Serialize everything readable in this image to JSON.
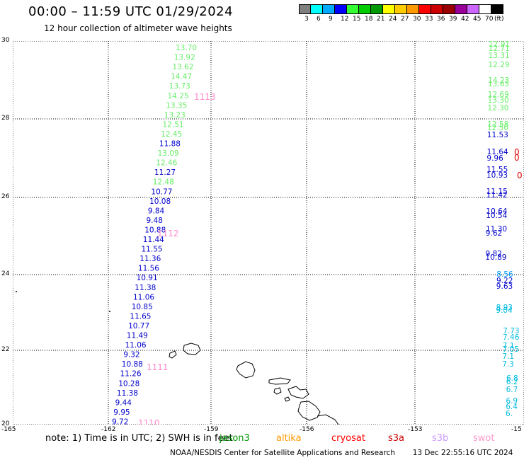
{
  "header": {
    "title": "00:00 – 11:59 UTC 01/29/2024",
    "subtitle": "12 hour collection of altimeter wave heights"
  },
  "colorbar": {
    "colors": [
      "#808080",
      "#00ffff",
      "#00aaff",
      "#0000ff",
      "#33ff33",
      "#00cc00",
      "#009900",
      "#ffff00",
      "#ffcc00",
      "#ff9900",
      "#ff0000",
      "#cc0000",
      "#990000",
      "#990099",
      "#cc66ff",
      "#ffffff",
      "#000000"
    ],
    "labels": [
      "3",
      "6",
      "9",
      "12",
      "15",
      "18",
      "21",
      "24",
      "27",
      "30",
      "33",
      "36",
      "39",
      "42",
      "45",
      "70",
      "(ft)"
    ]
  },
  "axes": {
    "y_labels": [
      "30",
      "28",
      "26",
      "24",
      "22",
      "20"
    ],
    "x_labels": [
      "-165",
      "-162",
      "-159",
      "-156",
      "-153",
      "-15"
    ]
  },
  "tracks": {
    "track_1110": {
      "id": "1110",
      "values": [
        {
          "v": "13.70",
          "c": "#66ee66"
        },
        {
          "v": "13.92",
          "c": "#66ee66"
        },
        {
          "v": "13.62",
          "c": "#66ee66"
        },
        {
          "v": "14.47",
          "c": "#66ee66"
        },
        {
          "v": "13.73",
          "c": "#66ee66"
        },
        {
          "v": "14.25",
          "c": "#66ee66"
        },
        {
          "v": "13.35",
          "c": "#66ee66"
        },
        {
          "v": "13.23",
          "c": "#66ee66"
        },
        {
          "v": "12.51",
          "c": "#66ee66"
        },
        {
          "v": "12.45",
          "c": "#66ee66"
        },
        {
          "v": "11.88",
          "c": "#0000cc"
        },
        {
          "v": "13.09",
          "c": "#66ee66"
        },
        {
          "v": "12.46",
          "c": "#66ee66"
        },
        {
          "v": "11.27",
          "c": "#0000cc"
        },
        {
          "v": "12.48",
          "c": "#66ee66"
        },
        {
          "v": "10.77",
          "c": "#0000cc"
        },
        {
          "v": "10.08",
          "c": "#0000cc"
        },
        {
          "v": "9.84",
          "c": "#0000cc"
        },
        {
          "v": "9.48",
          "c": "#0000cc"
        },
        {
          "v": "10.88",
          "c": "#0000cc"
        },
        {
          "v": "11.44",
          "c": "#0000cc"
        },
        {
          "v": "11.55",
          "c": "#0000cc"
        },
        {
          "v": "11.36",
          "c": "#0000cc"
        },
        {
          "v": "11.56",
          "c": "#0000cc"
        },
        {
          "v": "10.91",
          "c": "#0000cc"
        },
        {
          "v": "11.38",
          "c": "#0000cc"
        },
        {
          "v": "11.06",
          "c": "#0000cc"
        },
        {
          "v": "10.85",
          "c": "#0000cc"
        },
        {
          "v": "11.65",
          "c": "#0000cc"
        },
        {
          "v": "10.77",
          "c": "#0000cc"
        },
        {
          "v": "11.49",
          "c": "#0000cc"
        },
        {
          "v": "11.06",
          "c": "#0000cc"
        },
        {
          "v": "9.32",
          "c": "#0000cc"
        },
        {
          "v": "10.88",
          "c": "#0000cc"
        },
        {
          "v": "11.26",
          "c": "#0000cc"
        },
        {
          "v": "10.28",
          "c": "#0000cc"
        },
        {
          "v": "11.38",
          "c": "#0000cc"
        },
        {
          "v": "9.44",
          "c": "#0000cc"
        },
        {
          "v": "9.95",
          "c": "#0000cc"
        },
        {
          "v": "9.72",
          "c": "#0000cc"
        }
      ]
    },
    "time_tags": [
      "1113",
      "1112",
      "1111",
      "1110"
    ],
    "track_east": {
      "values": [
        {
          "v": "12.91",
          "c": "#66ee66"
        },
        {
          "v": "12.71",
          "c": "#66ee66"
        },
        {
          "v": "13.31",
          "c": "#66ee66"
        },
        {
          "v": "12.29",
          "c": "#66ee66"
        },
        {
          "v": "14.23",
          "c": "#66ee66"
        },
        {
          "v": "13.65",
          "c": "#66ee66"
        },
        {
          "v": "12.69",
          "c": "#66ee66"
        },
        {
          "v": "13.30",
          "c": "#66ee66"
        },
        {
          "v": "12.30",
          "c": "#66ee66"
        },
        {
          "v": "12.58",
          "c": "#66ee66"
        },
        {
          "v": "12.50",
          "c": "#66ee66"
        },
        {
          "v": "11.53",
          "c": "#0000cc"
        },
        {
          "v": "11.64",
          "c": "#0000cc"
        },
        {
          "v": "9.96",
          "c": "#0000cc"
        },
        {
          "v": "11.55",
          "c": "#0000cc"
        },
        {
          "v": "10.93",
          "c": "#0000cc"
        },
        {
          "v": "11.15",
          "c": "#0000cc"
        },
        {
          "v": "11.42",
          "c": "#0000cc"
        },
        {
          "v": "10.64",
          "c": "#0000cc"
        },
        {
          "v": "10.54",
          "c": "#0000cc"
        },
        {
          "v": "11.30",
          "c": "#0000cc"
        },
        {
          "v": "9.62",
          "c": "#0000cc"
        },
        {
          "v": "9.82",
          "c": "#0000cc"
        },
        {
          "v": "10.89",
          "c": "#0000cc"
        },
        {
          "v": "8.56",
          "c": "#0099ff"
        },
        {
          "v": "9.22",
          "c": "#0000cc"
        },
        {
          "v": "9.63",
          "c": "#0000cc"
        },
        {
          "v": "8.93",
          "c": "#00bbdd"
        },
        {
          "v": "9.04",
          "c": "#00bbdd"
        },
        {
          "v": "7.73",
          "c": "#00bbdd"
        },
        {
          "v": "7.46",
          "c": "#00bbdd"
        },
        {
          "v": "7.1",
          "c": "#00bbdd"
        },
        {
          "v": "7.05",
          "c": "#00bbdd"
        },
        {
          "v": "7.1",
          "c": "#00bbdd"
        },
        {
          "v": "7.3",
          "c": "#00bbdd"
        },
        {
          "v": "6.8",
          "c": "#00bbdd"
        },
        {
          "v": "6.2",
          "c": "#00bbdd"
        },
        {
          "v": "6.7",
          "c": "#00bbdd"
        },
        {
          "v": "6.9",
          "c": "#00bbdd"
        },
        {
          "v": "6.4",
          "c": "#00bbdd"
        },
        {
          "v": "6.",
          "c": "#00bbdd"
        }
      ]
    },
    "red_marks": [
      "0",
      "0",
      "0"
    ]
  },
  "legend": {
    "note": "note: 1) Time is in UTC; 2) SWH is in feet",
    "satellites": [
      {
        "name": "jason3",
        "color": "#009900"
      },
      {
        "name": "altika",
        "color": "#ff9900"
      },
      {
        "name": "cryosat",
        "color": "#ff0000"
      },
      {
        "name": "s3a",
        "color": "#cc0000"
      },
      {
        "name": "s3b",
        "color": "#cc99ff"
      },
      {
        "name": "swot",
        "color": "#ff99cc"
      }
    ]
  },
  "footer": {
    "credit": "NOAA/NESDIS Center for Satellite Applications and Research",
    "timestamp": "13 Dec 22:55:16 UTC 2024"
  }
}
